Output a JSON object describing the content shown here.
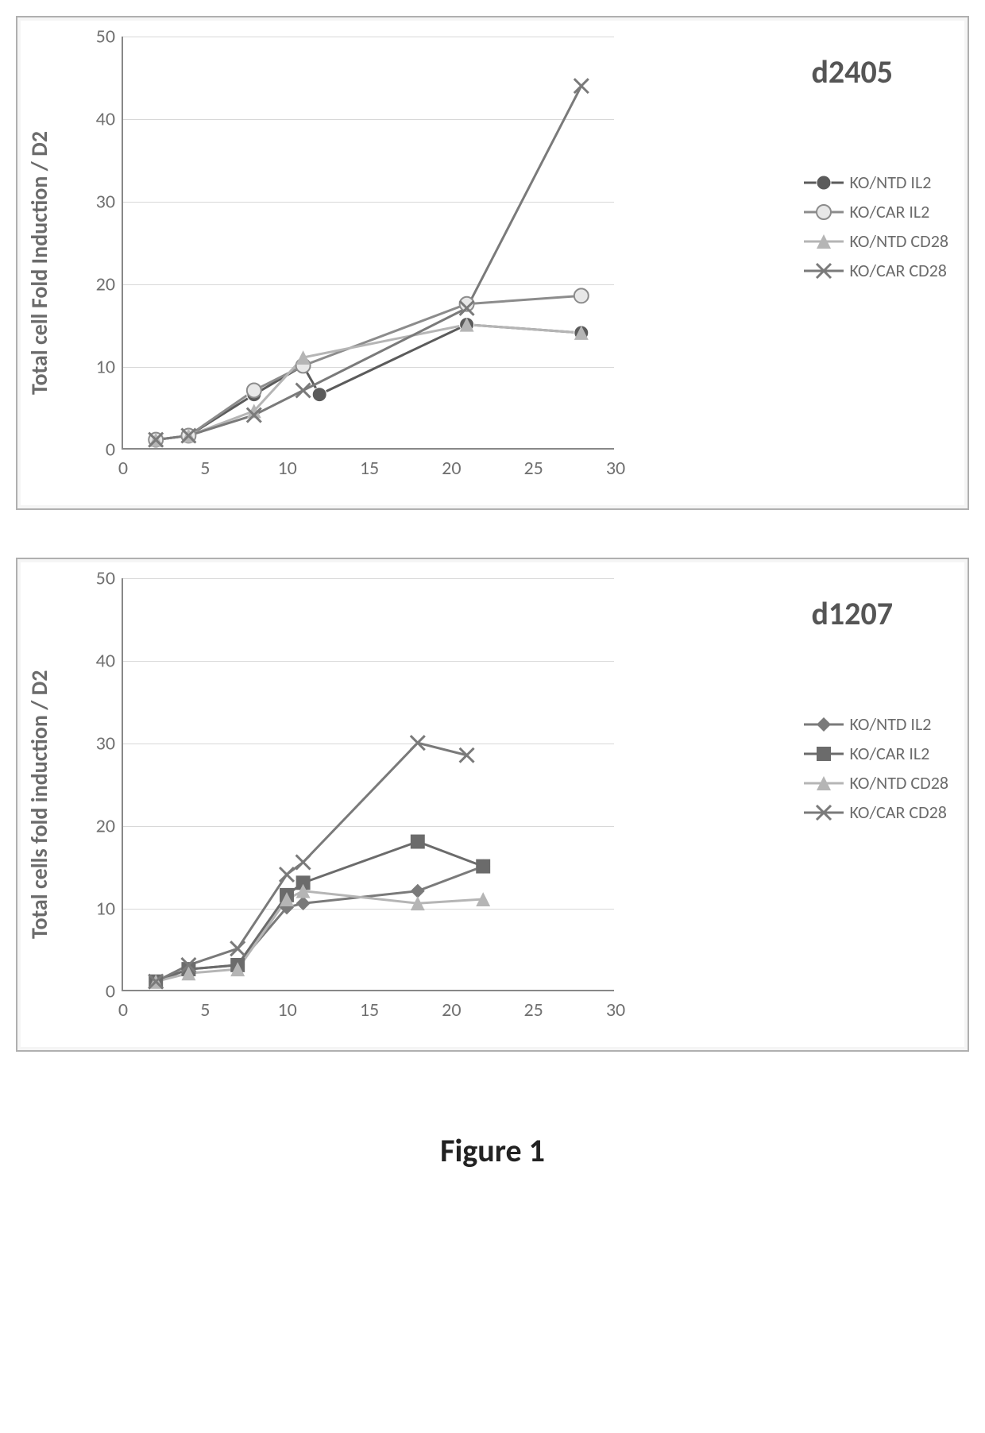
{
  "figure_caption": "Figure 1",
  "common": {
    "background_color": "#ffffff",
    "panel_border_color": "#b0b0b0",
    "grid_color": "#d8d8d8",
    "axis_color": "#888888",
    "tick_font_color": "#707070",
    "label_font_color": "#6b6b6b",
    "tick_fontsize": 24,
    "label_fontsize": 28,
    "title_fontsize": 40,
    "legend_fontsize": 22,
    "line_width": 3,
    "marker_size": 9
  },
  "charts": [
    {
      "id": "d2405",
      "title": "d2405",
      "ylabel": "Total cell Fold Induction / D2",
      "xlim": [
        0,
        30
      ],
      "ylim": [
        0,
        50
      ],
      "xtick_step": 5,
      "ytick_step": 10,
      "series": [
        {
          "name": "KO/NTD IL2",
          "marker": "circle-filled",
          "color": "#5b5b5b",
          "line_color": "#5b5b5b",
          "x": [
            2,
            4,
            8,
            11,
            12,
            21,
            28
          ],
          "y": [
            1,
            1.5,
            6.5,
            10,
            6.5,
            15,
            14
          ]
        },
        {
          "name": "KO/CAR IL2",
          "marker": "circle-open",
          "color": "#8c8c8c",
          "line_color": "#8c8c8c",
          "x": [
            2,
            4,
            8,
            11,
            21,
            28
          ],
          "y": [
            1,
            1.5,
            7,
            10,
            17.5,
            18.5
          ]
        },
        {
          "name": "KO/NTD CD28",
          "marker": "triangle",
          "color": "#b5b5b5",
          "line_color": "#b5b5b5",
          "x": [
            2,
            4,
            8,
            11,
            21,
            28
          ],
          "y": [
            1,
            1.5,
            4.5,
            11,
            15,
            14
          ]
        },
        {
          "name": "KO/CAR CD28",
          "marker": "x",
          "color": "#7a7a7a",
          "line_color": "#7a7a7a",
          "x": [
            2,
            4,
            8,
            11,
            21,
            28
          ],
          "y": [
            1,
            1.5,
            4,
            7,
            17,
            44
          ]
        }
      ]
    },
    {
      "id": "d1207",
      "title": "d1207",
      "ylabel": "Total cells fold induction / D2",
      "xlim": [
        0,
        30
      ],
      "ylim": [
        0,
        50
      ],
      "xtick_step": 5,
      "ytick_step": 10,
      "series": [
        {
          "name": "KO/NTD IL2",
          "marker": "diamond",
          "color": "#7a7a7a",
          "line_color": "#7a7a7a",
          "x": [
            2,
            4,
            7,
            10,
            11,
            18,
            22
          ],
          "y": [
            1,
            2.5,
            3,
            10,
            10.5,
            12,
            15
          ]
        },
        {
          "name": "KO/CAR IL2",
          "marker": "square",
          "color": "#6b6b6b",
          "line_color": "#6b6b6b",
          "x": [
            2,
            4,
            7,
            10,
            11,
            18,
            22
          ],
          "y": [
            1,
            2.5,
            3,
            11.5,
            13,
            18,
            15
          ]
        },
        {
          "name": "KO/NTD CD28",
          "marker": "triangle",
          "color": "#b5b5b5",
          "line_color": "#b5b5b5",
          "x": [
            2,
            4,
            7,
            10,
            11,
            18,
            22
          ],
          "y": [
            1,
            2,
            2.5,
            11,
            12,
            10.5,
            11
          ]
        },
        {
          "name": "KO/CAR CD28",
          "marker": "x",
          "color": "#7a7a7a",
          "line_color": "#7a7a7a",
          "x": [
            2,
            4,
            7,
            10,
            11,
            18,
            21
          ],
          "y": [
            1,
            3,
            5,
            14,
            15.5,
            30,
            28.5
          ]
        }
      ]
    }
  ]
}
